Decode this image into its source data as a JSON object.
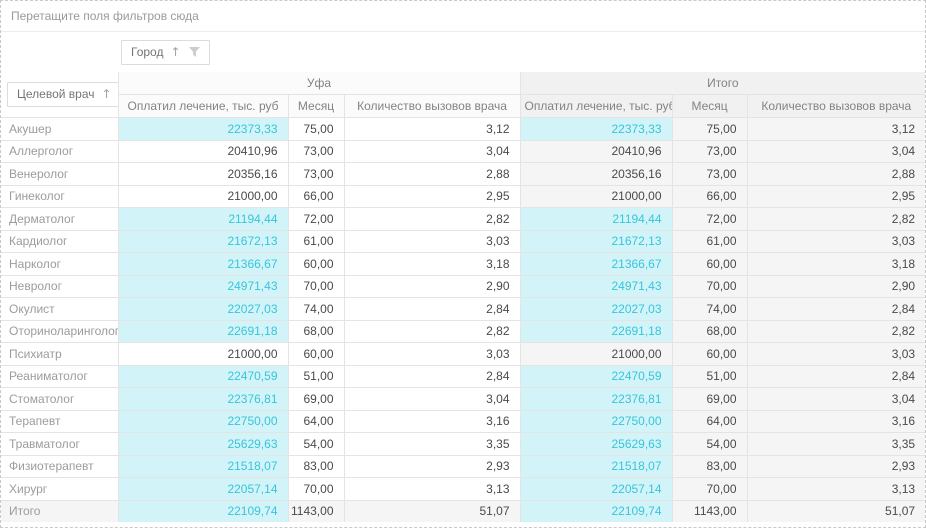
{
  "filter_area": {
    "placeholder": "Перетащите поля фильтров сюда"
  },
  "column_area": {
    "field": {
      "label": "Город",
      "sort": "asc"
    }
  },
  "row_area": {
    "field": {
      "label": "Целевой врач",
      "sort": "asc"
    }
  },
  "icons": {
    "sort_asc": "↑",
    "filter": "funnel-icon"
  },
  "colors": {
    "highlight_bg": "#d2f4f9",
    "highlight_text": "#38c5d9",
    "total_bg": "#f5f5f5",
    "header_bg": "#fbfbfb",
    "total_header_bg": "#f1f1f1",
    "border": "#e4e4e4"
  },
  "columns": {
    "groups": [
      {
        "label": "Уфа",
        "total": false
      },
      {
        "label": "Итого",
        "total": true
      }
    ],
    "measures": [
      "Оплатил лечение, тыс. руб",
      "Месяц",
      "Количество вызовов врача"
    ]
  },
  "rows": [
    {
      "label": "Акушер",
      "highlight": true,
      "total": false,
      "ufa": {
        "paid": "22373,33",
        "month": "75,00",
        "calls": "3,12"
      },
      "itogo": {
        "paid": "22373,33",
        "month": "75,00",
        "calls": "3,12"
      }
    },
    {
      "label": "Аллерголог",
      "highlight": false,
      "total": false,
      "ufa": {
        "paid": "20410,96",
        "month": "73,00",
        "calls": "3,04"
      },
      "itogo": {
        "paid": "20410,96",
        "month": "73,00",
        "calls": "3,04"
      }
    },
    {
      "label": "Венеролог",
      "highlight": false,
      "total": false,
      "ufa": {
        "paid": "20356,16",
        "month": "73,00",
        "calls": "2,88"
      },
      "itogo": {
        "paid": "20356,16",
        "month": "73,00",
        "calls": "2,88"
      }
    },
    {
      "label": "Гинеколог",
      "highlight": false,
      "total": false,
      "ufa": {
        "paid": "21000,00",
        "month": "66,00",
        "calls": "2,95"
      },
      "itogo": {
        "paid": "21000,00",
        "month": "66,00",
        "calls": "2,95"
      }
    },
    {
      "label": "Дерматолог",
      "highlight": true,
      "total": false,
      "ufa": {
        "paid": "21194,44",
        "month": "72,00",
        "calls": "2,82"
      },
      "itogo": {
        "paid": "21194,44",
        "month": "72,00",
        "calls": "2,82"
      }
    },
    {
      "label": "Кардиолог",
      "highlight": true,
      "total": false,
      "ufa": {
        "paid": "21672,13",
        "month": "61,00",
        "calls": "3,03"
      },
      "itogo": {
        "paid": "21672,13",
        "month": "61,00",
        "calls": "3,03"
      }
    },
    {
      "label": "Нарколог",
      "highlight": true,
      "total": false,
      "ufa": {
        "paid": "21366,67",
        "month": "60,00",
        "calls": "3,18"
      },
      "itogo": {
        "paid": "21366,67",
        "month": "60,00",
        "calls": "3,18"
      }
    },
    {
      "label": "Невролог",
      "highlight": true,
      "total": false,
      "ufa": {
        "paid": "24971,43",
        "month": "70,00",
        "calls": "2,90"
      },
      "itogo": {
        "paid": "24971,43",
        "month": "70,00",
        "calls": "2,90"
      }
    },
    {
      "label": "Окулист",
      "highlight": true,
      "total": false,
      "ufa": {
        "paid": "22027,03",
        "month": "74,00",
        "calls": "2,84"
      },
      "itogo": {
        "paid": "22027,03",
        "month": "74,00",
        "calls": "2,84"
      }
    },
    {
      "label": "Оториноларинголог",
      "highlight": true,
      "total": false,
      "ufa": {
        "paid": "22691,18",
        "month": "68,00",
        "calls": "2,82"
      },
      "itogo": {
        "paid": "22691,18",
        "month": "68,00",
        "calls": "2,82"
      }
    },
    {
      "label": "Психиатр",
      "highlight": false,
      "total": false,
      "ufa": {
        "paid": "21000,00",
        "month": "60,00",
        "calls": "3,03"
      },
      "itogo": {
        "paid": "21000,00",
        "month": "60,00",
        "calls": "3,03"
      }
    },
    {
      "label": "Реаниматолог",
      "highlight": true,
      "total": false,
      "ufa": {
        "paid": "22470,59",
        "month": "51,00",
        "calls": "2,84"
      },
      "itogo": {
        "paid": "22470,59",
        "month": "51,00",
        "calls": "2,84"
      }
    },
    {
      "label": "Стоматолог",
      "highlight": true,
      "total": false,
      "ufa": {
        "paid": "22376,81",
        "month": "69,00",
        "calls": "3,04"
      },
      "itogo": {
        "paid": "22376,81",
        "month": "69,00",
        "calls": "3,04"
      }
    },
    {
      "label": "Терапевт",
      "highlight": true,
      "total": false,
      "ufa": {
        "paid": "22750,00",
        "month": "64,00",
        "calls": "3,16"
      },
      "itogo": {
        "paid": "22750,00",
        "month": "64,00",
        "calls": "3,16"
      }
    },
    {
      "label": "Травматолог",
      "highlight": true,
      "total": false,
      "ufa": {
        "paid": "25629,63",
        "month": "54,00",
        "calls": "3,35"
      },
      "itogo": {
        "paid": "25629,63",
        "month": "54,00",
        "calls": "3,35"
      }
    },
    {
      "label": "Физиотерапевт",
      "highlight": true,
      "total": false,
      "ufa": {
        "paid": "21518,07",
        "month": "83,00",
        "calls": "2,93"
      },
      "itogo": {
        "paid": "21518,07",
        "month": "83,00",
        "calls": "2,93"
      }
    },
    {
      "label": "Хирург",
      "highlight": true,
      "total": false,
      "ufa": {
        "paid": "22057,14",
        "month": "70,00",
        "calls": "3,13"
      },
      "itogo": {
        "paid": "22057,14",
        "month": "70,00",
        "calls": "3,13"
      }
    },
    {
      "label": "Итого",
      "highlight": true,
      "total": true,
      "ufa": {
        "paid": "22109,74",
        "month": "1143,00",
        "calls": "51,07"
      },
      "itogo": {
        "paid": "22109,74",
        "month": "1143,00",
        "calls": "51,07"
      }
    }
  ]
}
